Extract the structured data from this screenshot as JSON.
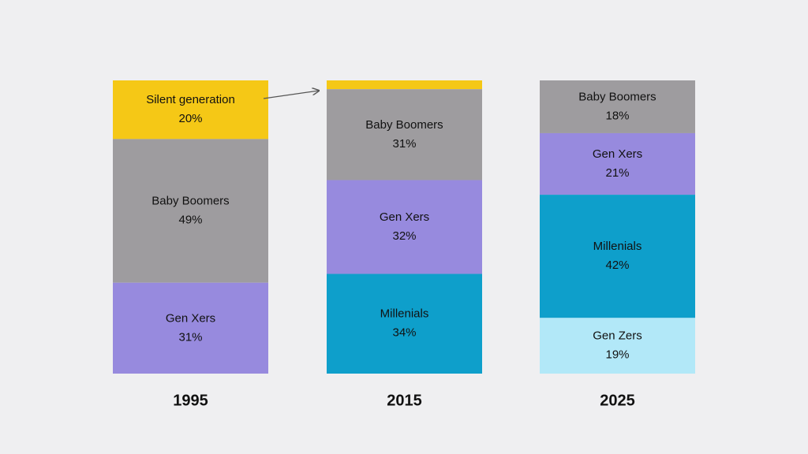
{
  "chart_data": {
    "type": "stacked-bar",
    "categories": [
      "1995",
      "2015",
      "2025"
    ],
    "series": [
      {
        "name": "Silent generation",
        "color": "#f5c816",
        "values": [
          20,
          3,
          null
        ],
        "value_labels": [
          "20%",
          null,
          null
        ]
      },
      {
        "name": "Baby Boomers",
        "color": "#9e9c9f",
        "values": [
          49,
          31,
          18
        ],
        "value_labels": [
          "49%",
          "31%",
          "18%"
        ]
      },
      {
        "name": "Gen Xers",
        "color": "#978ade",
        "values": [
          31,
          32,
          21
        ],
        "value_labels": [
          "31%",
          "32%",
          "21%"
        ]
      },
      {
        "name": "Millenials",
        "color": "#0e9fcb",
        "values": [
          null,
          34,
          42
        ],
        "value_labels": [
          null,
          "34%",
          "42%"
        ]
      },
      {
        "name": "Gen Zers",
        "color": "#b2e8f8",
        "values": [
          null,
          null,
          19
        ],
        "value_labels": [
          null,
          null,
          "19%"
        ]
      }
    ]
  }
}
